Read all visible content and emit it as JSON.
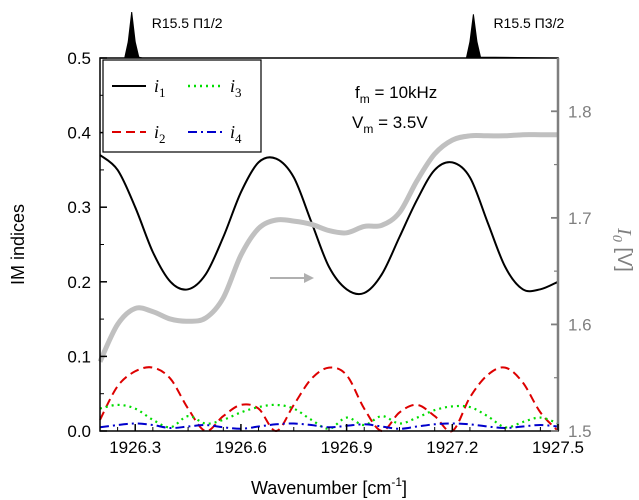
{
  "chart_data": {
    "type": "line",
    "xlabel": "Wavenumber [cm",
    "xlabel_sup": "-1",
    "xlabel_end": "]",
    "ylabel": "IM indices",
    "y2label_main": "I",
    "y2label_sub": "0",
    "y2label_unit": " [V]",
    "xlim": [
      1926.2,
      1927.5
    ],
    "ylim": [
      0,
      0.5
    ],
    "y2lim": [
      1.5,
      1.85
    ],
    "x_ticks": [
      1926.3,
      1926.6,
      1926.9,
      1927.2,
      1927.5
    ],
    "x_tick_labels": [
      "1926.3",
      "1926.6",
      "1926.9",
      "1927.2",
      "1927.5"
    ],
    "y_ticks": [
      0.0,
      0.1,
      0.2,
      0.3,
      0.4,
      0.5
    ],
    "y_tick_labels": [
      "0.0",
      "0.1",
      "0.2",
      "0.3",
      "0.4",
      "0.5"
    ],
    "y2_ticks": [
      1.5,
      1.6,
      1.7,
      1.8
    ],
    "y2_tick_labels": [
      "1.5",
      "1.6",
      "1.7",
      "1.8"
    ],
    "annotations": {
      "fm": "f",
      "fm_sub": "m",
      "fm_value": " = 10kHz",
      "vm": "V",
      "vm_sub": "m",
      "vm_value": " = 3.5V"
    },
    "peaks": [
      {
        "label": "R15.5 Π1/2",
        "x": 1926.29
      },
      {
        "label": "R15.5 Π3/2",
        "x": 1927.26
      }
    ],
    "legend": [
      {
        "name": "i",
        "sub": "1",
        "color": "#000000",
        "dash": ""
      },
      {
        "name": "i",
        "sub": "3",
        "color": "#00dd00",
        "dash": "2,4"
      },
      {
        "name": "i",
        "sub": "2",
        "color": "#dd0000",
        "dash": "9,5"
      },
      {
        "name": "i",
        "sub": "4",
        "color": "#0000cc",
        "dash": "9,4,2,4"
      }
    ],
    "series": [
      {
        "name": "i1",
        "axis": "left",
        "color": "#000000",
        "dash": "",
        "width": 2,
        "x": [
          1926.2,
          1926.25,
          1926.3,
          1926.35,
          1926.4,
          1926.45,
          1926.5,
          1926.55,
          1926.6,
          1926.65,
          1926.7,
          1926.75,
          1926.8,
          1926.85,
          1926.9,
          1926.95,
          1927.0,
          1927.05,
          1927.1,
          1927.15,
          1927.2,
          1927.25,
          1927.3,
          1927.35,
          1927.4,
          1927.45,
          1927.5
        ],
        "y": [
          0.37,
          0.35,
          0.3,
          0.24,
          0.2,
          0.19,
          0.21,
          0.26,
          0.32,
          0.36,
          0.365,
          0.34,
          0.28,
          0.22,
          0.19,
          0.185,
          0.21,
          0.26,
          0.31,
          0.35,
          0.36,
          0.34,
          0.28,
          0.22,
          0.19,
          0.19,
          0.2
        ]
      },
      {
        "name": "i2",
        "axis": "left",
        "color": "#dd0000",
        "dash": "9,5",
        "width": 2,
        "x": [
          1926.2,
          1926.25,
          1926.3,
          1926.35,
          1926.4,
          1926.45,
          1926.5,
          1926.55,
          1926.6,
          1926.65,
          1926.7,
          1926.75,
          1926.8,
          1926.85,
          1926.9,
          1926.95,
          1927.0,
          1927.05,
          1927.1,
          1927.15,
          1927.2,
          1927.25,
          1927.3,
          1927.35,
          1927.4,
          1927.45,
          1927.5
        ],
        "y": [
          0.015,
          0.06,
          0.08,
          0.085,
          0.07,
          0.03,
          0.0,
          0.02,
          0.035,
          0.03,
          0.0,
          0.035,
          0.07,
          0.085,
          0.075,
          0.03,
          0.0,
          0.025,
          0.035,
          0.02,
          0.0,
          0.045,
          0.075,
          0.085,
          0.065,
          0.025,
          0.0
        ]
      },
      {
        "name": "i3",
        "axis": "left",
        "color": "#00dd00",
        "dash": "2,4",
        "width": 2.2,
        "x": [
          1926.2,
          1926.25,
          1926.3,
          1926.35,
          1926.4,
          1926.45,
          1926.5,
          1926.55,
          1926.6,
          1926.65,
          1926.7,
          1926.75,
          1926.8,
          1926.85,
          1926.9,
          1926.95,
          1927.0,
          1927.05,
          1927.1,
          1927.15,
          1927.2,
          1927.25,
          1927.3,
          1927.35,
          1927.4,
          1927.45,
          1927.5
        ],
        "y": [
          0.03,
          0.035,
          0.03,
          0.015,
          0.005,
          0.02,
          0.01,
          0.015,
          0.025,
          0.032,
          0.035,
          0.03,
          0.015,
          0.003,
          0.018,
          0.008,
          0.02,
          0.01,
          0.018,
          0.028,
          0.033,
          0.032,
          0.02,
          0.005,
          0.012,
          0.018,
          0.01
        ]
      },
      {
        "name": "i4",
        "axis": "left",
        "color": "#0000cc",
        "dash": "9,4,2,4",
        "width": 2,
        "x": [
          1926.2,
          1926.25,
          1926.3,
          1926.35,
          1926.4,
          1926.45,
          1926.5,
          1926.55,
          1926.6,
          1926.65,
          1926.7,
          1926.75,
          1926.8,
          1926.85,
          1926.9,
          1926.95,
          1927.0,
          1927.05,
          1927.1,
          1927.15,
          1927.2,
          1927.25,
          1927.3,
          1927.35,
          1927.4,
          1927.45,
          1927.5
        ],
        "y": [
          0.005,
          0.008,
          0.01,
          0.008,
          0.004,
          0.006,
          0.008,
          0.005,
          0.003,
          0.006,
          0.009,
          0.01,
          0.008,
          0.005,
          0.007,
          0.009,
          0.006,
          0.003,
          0.006,
          0.009,
          0.01,
          0.009,
          0.006,
          0.004,
          0.006,
          0.008,
          0.006
        ]
      },
      {
        "name": "I0",
        "axis": "right",
        "color": "#c0c0c0",
        "dash": "",
        "width": 5,
        "x": [
          1926.2,
          1926.25,
          1926.3,
          1926.35,
          1926.4,
          1926.45,
          1926.5,
          1926.55,
          1926.6,
          1926.65,
          1926.7,
          1926.75,
          1926.8,
          1926.85,
          1926.9,
          1926.95,
          1927.0,
          1927.05,
          1927.1,
          1927.15,
          1927.2,
          1927.25,
          1927.3,
          1927.35,
          1927.4,
          1927.45,
          1927.5
        ],
        "y": [
          1.565,
          1.6,
          1.615,
          1.612,
          1.605,
          1.603,
          1.606,
          1.625,
          1.665,
          1.69,
          1.698,
          1.697,
          1.694,
          1.688,
          1.686,
          1.692,
          1.693,
          1.705,
          1.735,
          1.76,
          1.773,
          1.777,
          1.777,
          1.777,
          1.778,
          1.778,
          1.778
        ]
      }
    ],
    "peak_trace": {
      "x": [
        1926.2,
        1926.27,
        1926.28,
        1926.29,
        1926.3,
        1926.31,
        1926.32,
        1927.22,
        1927.24,
        1927.25,
        1927.26,
        1927.27,
        1927.28,
        1927.5
      ],
      "y": [
        0,
        0,
        0.35,
        1.0,
        0.35,
        0.02,
        0,
        0,
        0,
        0.35,
        0.95,
        0.35,
        0.02,
        0
      ]
    }
  }
}
